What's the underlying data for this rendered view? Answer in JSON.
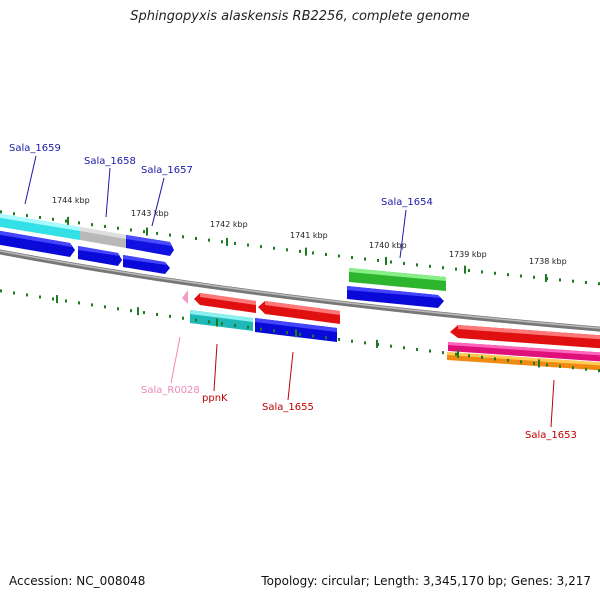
{
  "title": "Sphingopyxis alaskensis RB2256, complete genome",
  "footer": {
    "accession": "Accession: NC_008048",
    "summary": "Topology: circular; Length: 3,345,170 bp; Genes: 3,217"
  },
  "scale": {
    "unit": "kbp",
    "labels": [
      "1744 kbp",
      "1743 kbp",
      "1742 kbp",
      "1741 kbp",
      "1740 kbp",
      "1739 kbp",
      "1738 kbp"
    ]
  },
  "genes": {
    "top_labels": [
      "Sala_1659",
      "Sala_1658",
      "Sala_1657",
      "Sala_1654"
    ],
    "bottom_labels": [
      "Sala_R0028",
      "ppnK",
      "Sala_1655",
      "Sala_1653"
    ]
  },
  "colors": {
    "top_label": "#1a1aa8",
    "bottom_label": "#c00000",
    "rna_label": "#ee88bb",
    "backbone": "#888888",
    "tick": "#1e7a1e"
  }
}
